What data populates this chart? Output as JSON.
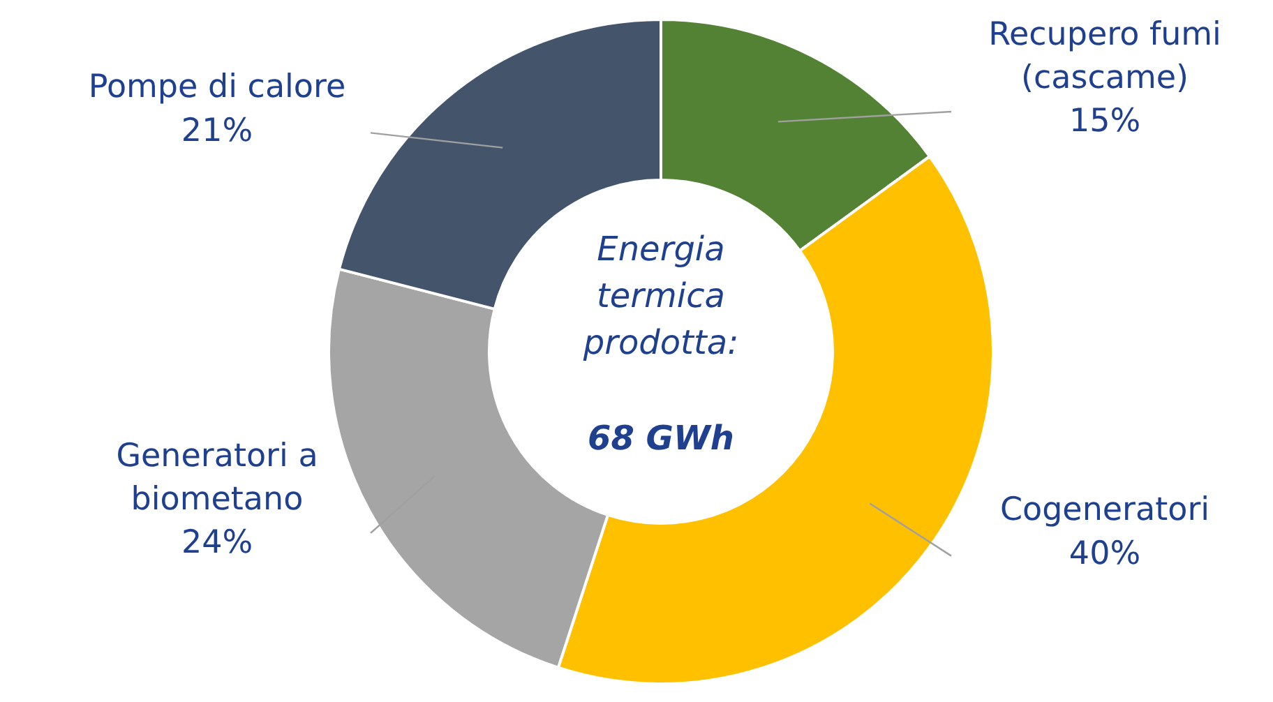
{
  "chart_data": {
    "type": "donut",
    "categories": [
      "Recupero fumi (cascame)",
      "Cogeneratori",
      "Generatori a biometano",
      "Pompe di calore"
    ],
    "values": [
      15,
      40,
      24,
      21
    ],
    "value_labels": [
      "15%",
      "40%",
      "24%",
      "21%"
    ],
    "colors": [
      "#548235",
      "#ffc000",
      "#a5a5a5",
      "#44546a"
    ],
    "annotations": [
      "Energia termica prodotta:",
      "68 GWh"
    ]
  }
}
